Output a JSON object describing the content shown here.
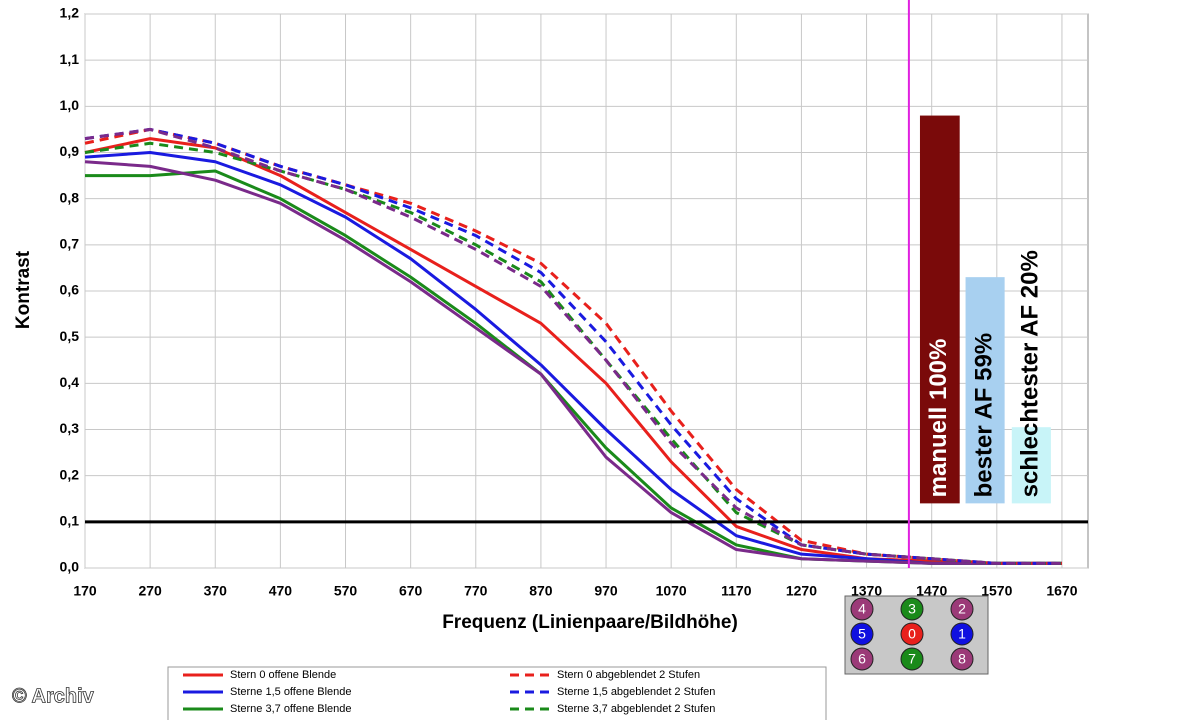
{
  "chart_data": {
    "type": "line",
    "x_label": "Frequenz (Linienpaare/Bildhöhe)",
    "y_label": "Kontrast",
    "x": [
      170,
      270,
      370,
      470,
      570,
      670,
      770,
      870,
      970,
      1070,
      1170,
      1270,
      1370,
      1470,
      1570,
      1670
    ],
    "xlim": [
      170,
      1710
    ],
    "xticks": [
      170,
      270,
      370,
      470,
      570,
      670,
      770,
      870,
      970,
      1070,
      1170,
      1270,
      1370,
      1470,
      1570,
      1670
    ],
    "ylim": [
      0,
      1.2
    ],
    "yticks": [
      {
        "value": 0,
        "label": "0,0"
      },
      {
        "value": 0.1,
        "label": "0,1"
      },
      {
        "value": 0.2,
        "label": "0,2"
      },
      {
        "value": 0.3,
        "label": "0,3"
      },
      {
        "value": 0.4,
        "label": "0,4"
      },
      {
        "value": 0.5,
        "label": "0,5"
      },
      {
        "value": 0.6,
        "label": "0,6"
      },
      {
        "value": 0.7,
        "label": "0,7"
      },
      {
        "value": 0.8,
        "label": "0,8"
      },
      {
        "value": 0.9,
        "label": "0,9"
      },
      {
        "value": 1.0,
        "label": "1,0"
      },
      {
        "value": 1.1,
        "label": "1,1"
      },
      {
        "value": 1.2,
        "label": "1,2"
      }
    ],
    "grid": true,
    "series": [
      {
        "name": "Stern 0 offene Blende",
        "color": "#e8201c",
        "dashed": false,
        "values": [
          0.9,
          0.93,
          0.91,
          0.85,
          0.77,
          0.69,
          0.61,
          0.53,
          0.4,
          0.23,
          0.09,
          0.04,
          0.02,
          0.015,
          0.01,
          0.01
        ]
      },
      {
        "name": "Sterne 1,5 offene Blende",
        "color": "#1a1ae0",
        "dashed": false,
        "values": [
          0.89,
          0.9,
          0.88,
          0.83,
          0.76,
          0.67,
          0.56,
          0.44,
          0.3,
          0.17,
          0.07,
          0.03,
          0.02,
          0.01,
          0.01,
          0.01
        ]
      },
      {
        "name": "Sterne 3,7 offene Blende",
        "color": "#1a8a1a",
        "dashed": false,
        "values": [
          0.85,
          0.85,
          0.86,
          0.8,
          0.72,
          0.63,
          0.53,
          0.42,
          0.26,
          0.13,
          0.05,
          0.02,
          0.015,
          0.01,
          0.01,
          0.01
        ]
      },
      {
        "color": "#7a2a8a",
        "dashed": false,
        "values": [
          0.88,
          0.87,
          0.84,
          0.79,
          0.71,
          0.62,
          0.52,
          0.42,
          0.24,
          0.12,
          0.04,
          0.02,
          0.015,
          0.01,
          0.01,
          0.01
        ]
      },
      {
        "name": "Stern 0 abgeblendet 2 Stufen",
        "color": "#e8201c",
        "dashed": true,
        "values": [
          0.92,
          0.95,
          0.92,
          0.87,
          0.83,
          0.79,
          0.73,
          0.66,
          0.53,
          0.34,
          0.17,
          0.06,
          0.03,
          0.02,
          0.01,
          0.01
        ]
      },
      {
        "name": "Sterne 1,5 abgeblendet 2 Stufen",
        "color": "#1a1ae0",
        "dashed": true,
        "values": [
          0.93,
          0.95,
          0.92,
          0.87,
          0.83,
          0.78,
          0.72,
          0.64,
          0.49,
          0.31,
          0.15,
          0.05,
          0.03,
          0.02,
          0.01,
          0.01
        ]
      },
      {
        "name": "Sterne 3,7 abgeblendet 2 Stufen",
        "color": "#1a8a1a",
        "dashed": true,
        "values": [
          0.9,
          0.92,
          0.9,
          0.86,
          0.82,
          0.77,
          0.7,
          0.62,
          0.45,
          0.28,
          0.12,
          0.05,
          0.03,
          0.02,
          0.01,
          0.01
        ]
      },
      {
        "color": "#7a2a8a",
        "dashed": true,
        "values": [
          0.93,
          0.95,
          0.91,
          0.86,
          0.82,
          0.76,
          0.69,
          0.61,
          0.45,
          0.27,
          0.13,
          0.05,
          0.03,
          0.02,
          0.01,
          0.01
        ]
      }
    ],
    "hline": 0.1,
    "vline": 1435,
    "bars": [
      {
        "label": "manuell 100%",
        "color": "#7a0a0a",
        "text_color": "#ffffff",
        "x0": 1452,
        "x1": 1513,
        "bottom": 0.14,
        "top": 0.98
      },
      {
        "label": "bester AF 59%",
        "color": "#a8d0f0",
        "text_color": "#000000",
        "x0": 1522,
        "x1": 1582,
        "bottom": 0.14,
        "top": 0.63
      },
      {
        "label": "schlechtester AF 20%",
        "color": "#c8f4f8",
        "text_color": "#000000",
        "x0": 1593,
        "x1": 1653,
        "bottom": 0.14,
        "top": 0.305
      }
    ],
    "stars": [
      {
        "label": "4",
        "color": "#9b3a78"
      },
      {
        "label": "3",
        "color": "#1a8a1a"
      },
      {
        "label": "2",
        "color": "#9b3a78"
      },
      {
        "label": "5",
        "color": "#1010e0"
      },
      {
        "label": "0",
        "color": "#e8201c"
      },
      {
        "label": "1",
        "color": "#1010e0"
      },
      {
        "label": "6",
        "color": "#9b3a78"
      },
      {
        "label": "7",
        "color": "#1a8a1a"
      },
      {
        "label": "8",
        "color": "#9b3a78"
      }
    ],
    "credit": "© Archiv"
  }
}
